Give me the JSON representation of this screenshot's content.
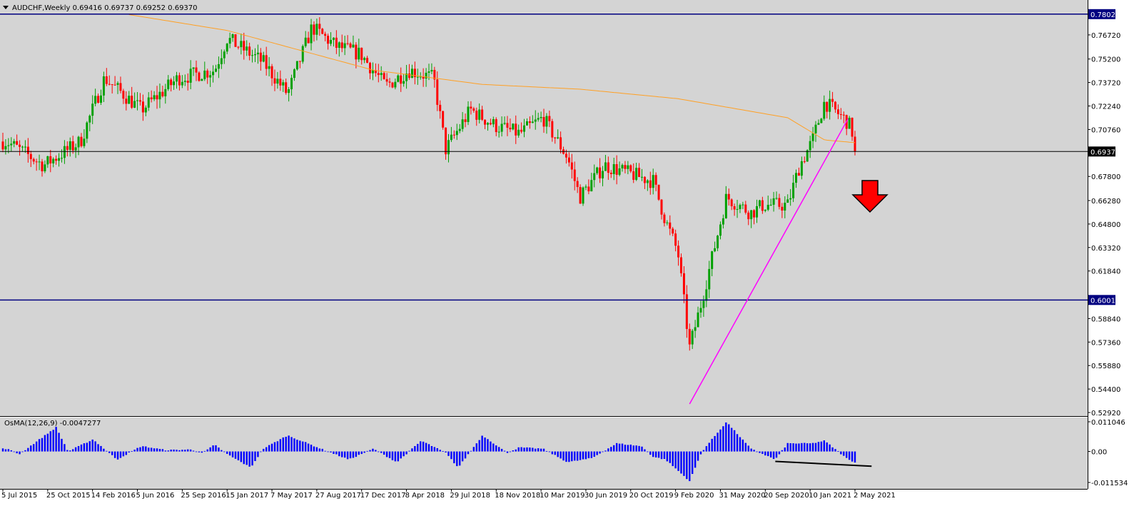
{
  "header": {
    "dropdown_icon": "triangle-down-icon",
    "symbol_info": "AUDCHF,Weekly  0.69416 0.69737 0.69252 0.69370"
  },
  "colors": {
    "background": "#d4d4d4",
    "bull": "#00a000",
    "bear": "#ff0000",
    "moving_average": "#ffa024",
    "trendline": "#ff00ff",
    "level_line": "#000080",
    "histogram": "#0000ff",
    "arrow": "#ff0000"
  },
  "chart_data": [
    {
      "type": "candlestick",
      "title": "AUDCHF,Weekly",
      "ylim": [
        0.5292,
        0.7892
      ],
      "y_tick_labels": [
        "0.76720",
        "0.75200",
        "0.73720",
        "0.72240",
        "0.70760",
        "0.67800",
        "0.66280",
        "0.64800",
        "0.63320",
        "0.61840",
        "0.58840",
        "0.57360",
        "0.55880",
        "0.54400",
        "0.52920"
      ],
      "x_tick_labels": [
        "5 Jul 2015",
        "25 Oct 2015",
        "14 Feb 2016",
        "5 Jun 2016",
        "25 Sep 2016",
        "15 Jan 2017",
        "7 May 2017",
        "27 Aug 2017",
        "17 Dec 2017",
        "8 Apr 2018",
        "29 Jul 2018",
        "18 Nov 2018",
        "10 Mar 2019",
        "30 Jun 2019",
        "20 Oct 2019",
        "9 Feb 2020",
        "31 May 2020",
        "20 Sep 2020",
        "10 Jan 2021",
        "2 May 2021"
      ],
      "last_price": {
        "value": 0.6937,
        "label": "0.69370"
      },
      "horizontal_levels": [
        {
          "value": 0.78029,
          "label": "0.78029"
        },
        {
          "value": 0.60013,
          "label": "0.60013"
        }
      ],
      "trendline": {
        "from": {
          "x": "Mar 2020",
          "y": 0.5346
        },
        "to": {
          "x": "Apr 2021",
          "y": 0.7145
        }
      },
      "signal": "sell-arrow",
      "price_path": [
        [
          "Jul 2015",
          0.7
        ],
        [
          "Oct 2015",
          0.685
        ],
        [
          "Jan 2016",
          0.7
        ],
        [
          "Mar 2016",
          0.74
        ],
        [
          "Jun 2016",
          0.72
        ],
        [
          "Sep 2016",
          0.74
        ],
        [
          "Dec 2016",
          0.745
        ],
        [
          "Jan 2017",
          0.765
        ],
        [
          "Apr 2017",
          0.75
        ],
        [
          "Jun 2017",
          0.73
        ],
        [
          "Aug 2017",
          0.772
        ],
        [
          "Oct 2017",
          0.76
        ],
        [
          "Dec 2017",
          0.755
        ],
        [
          "Feb 2018",
          0.735
        ],
        [
          "Apr 2018",
          0.745
        ],
        [
          "Jun 2018",
          0.74
        ],
        [
          "Jul 2018",
          0.695
        ],
        [
          "Sep 2018",
          0.72
        ],
        [
          "Nov 2018",
          0.71
        ],
        [
          "Jan 2019",
          0.705
        ],
        [
          "Mar 2019",
          0.715
        ],
        [
          "May 2019",
          0.69
        ],
        [
          "Jun 2019",
          0.665
        ],
        [
          "Aug 2019",
          0.685
        ],
        [
          "Oct 2019",
          0.68
        ],
        [
          "Dec 2019",
          0.675
        ],
        [
          "Jan 2020",
          0.65
        ],
        [
          "Feb 2020",
          0.63
        ],
        [
          "Mar 2020",
          0.57
        ],
        [
          "Apr 2020",
          0.6
        ],
        [
          "Jun 2020",
          0.665
        ],
        [
          "Aug 2020",
          0.655
        ],
        [
          "Sep 2020",
          0.66
        ],
        [
          "Nov 2020",
          0.66
        ],
        [
          "Dec 2020",
          0.685
        ],
        [
          "Jan 2021",
          0.7
        ],
        [
          "Feb 2021",
          0.725
        ],
        [
          "Apr 2021",
          0.712
        ],
        [
          "May 2021",
          0.6937
        ]
      ],
      "moving_average_path": [
        [
          "May 2016",
          0.78
        ],
        [
          "Jan 2017",
          0.77
        ],
        [
          "Jan 2018",
          0.745
        ],
        [
          "Oct 2018",
          0.736
        ],
        [
          "Jun 2019",
          0.733
        ],
        [
          "Feb 2020",
          0.727
        ],
        [
          "Nov 2020",
          0.715
        ],
        [
          "Feb 2021",
          0.701
        ],
        [
          "May 2021",
          0.699
        ]
      ]
    },
    {
      "type": "bar",
      "title": "OsMA(12,26,9) -0.0047277",
      "ylim": [
        -0.011534,
        0.011046
      ],
      "y_tick_labels": [
        "0.011046",
        "0.00",
        "-0.011534"
      ],
      "osma_path": [
        [
          "Jul 2015",
          0.001
        ],
        [
          "Aug 2015",
          -0.001
        ],
        [
          "Nov 2015",
          0.009
        ],
        [
          "Dec 2015",
          0.0
        ],
        [
          "Feb 2016",
          0.0045
        ],
        [
          "Apr 2016",
          -0.003
        ],
        [
          "Jun 2016",
          0.002
        ],
        [
          "Aug 2016",
          0.0005
        ],
        [
          "Oct 2016",
          0.0007
        ],
        [
          "Nov 2016",
          -0.0005
        ],
        [
          "Dec 2016",
          0.0025
        ],
        [
          "Jan 2017",
          -0.001
        ],
        [
          "Mar 2017",
          -0.006
        ],
        [
          "Apr 2017",
          0.001
        ],
        [
          "Jun 2017",
          0.006
        ],
        [
          "Sep 2017",
          0.0005
        ],
        [
          "Nov 2017",
          -0.003
        ],
        [
          "Jan 2018",
          0.001
        ],
        [
          "Mar 2018",
          -0.004
        ],
        [
          "May 2018",
          0.004
        ],
        [
          "Jul 2018",
          -0.0005
        ],
        [
          "Aug 2018",
          -0.006
        ],
        [
          "Oct 2018",
          0.006
        ],
        [
          "Dec 2018",
          -0.0005
        ],
        [
          "Jan 2019",
          0.0015
        ],
        [
          "Mar 2019",
          0.001
        ],
        [
          "May 2019",
          -0.004
        ],
        [
          "Jul 2019",
          -0.0025
        ],
        [
          "Sep 2019",
          0.003
        ],
        [
          "Nov 2019",
          0.002
        ],
        [
          "Dec 2019",
          -0.002
        ],
        [
          "Jan 2020",
          -0.003
        ],
        [
          "Mar 2020",
          -0.011
        ],
        [
          "Apr 2020",
          0.0
        ],
        [
          "Jun 2020",
          0.011
        ],
        [
          "Aug 2020",
          0.001
        ],
        [
          "Oct 2020",
          -0.003
        ],
        [
          "Nov 2020",
          0.003
        ],
        [
          "Jan 2021",
          0.003
        ],
        [
          "Feb 2021",
          0.004
        ],
        [
          "Apr 2021",
          -0.003
        ],
        [
          "May 2021",
          -0.0047
        ]
      ]
    }
  ]
}
